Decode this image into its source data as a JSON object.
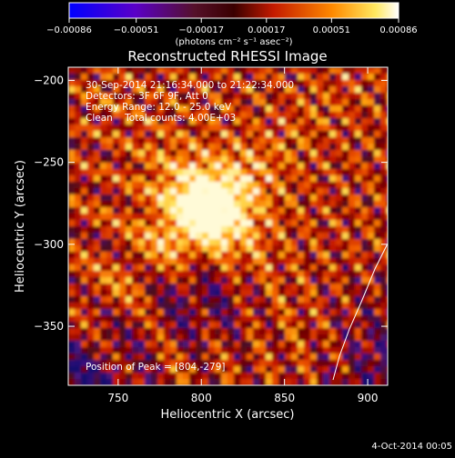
{
  "chart_data": {
    "type": "heatmap",
    "title": "Reconstructed RHESSI Image",
    "xlabel": "Heliocentric X (arcsec)",
    "ylabel": "Heliocentric Y (arcsec)",
    "xlim": [
      720,
      912
    ],
    "ylim": [
      -386,
      -192
    ],
    "x_ticks": [
      750,
      800,
      850,
      900
    ],
    "x_tick_labels": [
      "750",
      "800",
      "850",
      "900"
    ],
    "y_ticks": [
      -200,
      -250,
      -300,
      -350
    ],
    "y_tick_labels": [
      "−200",
      "−250",
      "−300",
      "−350"
    ],
    "colorbar": {
      "range": [
        -0.00086,
        0.00086
      ],
      "ticks": [
        -0.00086,
        -0.00051,
        -0.00017,
        0.00017,
        0.00051,
        0.00086
      ],
      "tick_labels": [
        "−0.00086",
        "−0.00051",
        "−0.00017",
        "0.00017",
        "0.00051",
        "0.00086"
      ],
      "unit_label": "(photons cm⁻² s⁻¹ asec⁻²)",
      "colormap": "blue-purple-red-orange-yellow-white"
    },
    "annotations": [
      "30-Sep-2014 21:16:34.000 to 21:22:34.000",
      "Detectors: 3F 6F 9F, Att 0",
      "Energy Range: 12.0 - 25.0 keV",
      "Clean    Total counts: 4.00E+03"
    ],
    "peak_label": "Position of Peak = [804,-279]",
    "peak_position": [
      804,
      -279
    ]
  },
  "footer": {
    "date": "4-Oct-2014 00:05"
  },
  "colors": {
    "background": "#000000",
    "text": "#ffffff",
    "limb": "#ffffff"
  }
}
